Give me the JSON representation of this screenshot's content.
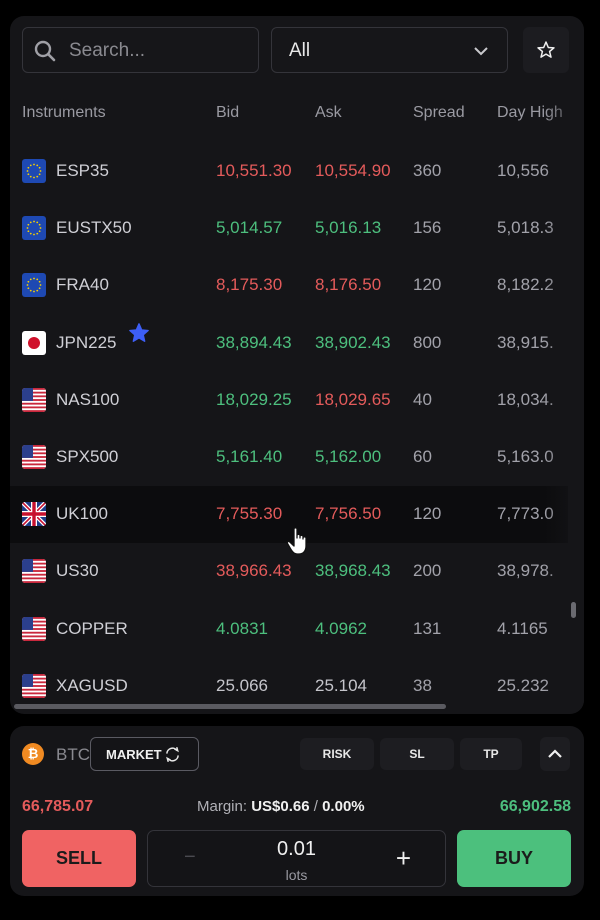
{
  "search": {
    "placeholder": "Search..."
  },
  "filter": {
    "value": "All"
  },
  "columns": [
    "Instruments",
    "Bid",
    "Ask",
    "Spread",
    "Day High"
  ],
  "rows": [
    {
      "symbol": "ESP35",
      "flag": "eu-flag-icon",
      "bid": "10,551.30",
      "ask": "10,554.90",
      "spread": "360",
      "day_high": "10,556",
      "bid_dir": "down",
      "ask_dir": "down"
    },
    {
      "symbol": "EUSTX50",
      "flag": "eu-flag-icon",
      "bid": "5,014.57",
      "ask": "5,016.13",
      "spread": "156",
      "day_high": "5,018.3",
      "bid_dir": "up",
      "ask_dir": "up"
    },
    {
      "symbol": "FRA40",
      "flag": "eu-flag-icon",
      "bid": "8,175.30",
      "ask": "8,176.50",
      "spread": "120",
      "day_high": "8,182.2",
      "bid_dir": "down",
      "ask_dir": "down"
    },
    {
      "symbol": "JPN225",
      "flag": "jp-flag-icon",
      "bid": "38,894.43",
      "ask": "38,902.43",
      "spread": "800",
      "day_high": "38,915.",
      "bid_dir": "up",
      "ask_dir": "up"
    },
    {
      "symbol": "NAS100",
      "flag": "us-flag-icon",
      "bid": "18,029.25",
      "ask": "18,029.65",
      "spread": "40",
      "day_high": "18,034.",
      "bid_dir": "up",
      "ask_dir": "down"
    },
    {
      "symbol": "SPX500",
      "flag": "us-flag-icon",
      "bid": "5,161.40",
      "ask": "5,162.00",
      "spread": "60",
      "day_high": "5,163.0",
      "bid_dir": "up",
      "ask_dir": "up"
    },
    {
      "symbol": "UK100",
      "flag": "uk-flag-icon",
      "bid": "7,755.30",
      "ask": "7,756.50",
      "spread": "120",
      "day_high": "7,773.0",
      "bid_dir": "down",
      "ask_dir": "down"
    },
    {
      "symbol": "US30",
      "flag": "us-flag-icon",
      "bid": "38,966.43",
      "ask": "38,968.43",
      "spread": "200",
      "day_high": "38,978.",
      "bid_dir": "down",
      "ask_dir": "up"
    },
    {
      "symbol": "COPPER",
      "flag": "us-flag-icon",
      "bid": "4.0831",
      "ask": "4.0962",
      "spread": "131",
      "day_high": "4.1165",
      "bid_dir": "up",
      "ask_dir": "up"
    },
    {
      "symbol": "XAGUSD",
      "flag": "us-flag-icon",
      "bid": "25.066",
      "ask": "25.104",
      "spread": "38",
      "day_high": "25.232",
      "bid_dir": "flat",
      "ask_dir": "flat"
    }
  ],
  "trade": {
    "instrument": "BTC",
    "order_type": "MARKET",
    "risk_label": "RISK",
    "sl_label": "SL",
    "tp_label": "TP",
    "sell_price": "66,785.07",
    "margin_label": "Margin:",
    "margin_value": "US$0.66",
    "margin_sep": "/",
    "margin_pct": "0.00%",
    "buy_price": "66,902.58",
    "sell_label": "SELL",
    "buy_label": "BUY",
    "lots_value": "0.01",
    "lots_unit": "lots",
    "minus": "−",
    "plus": "+"
  },
  "colors": {
    "up": "#4dbf7e",
    "down": "#e45b5b",
    "flat": "#c5c5cb",
    "sell": "#f06363",
    "buy": "#4cc07d"
  }
}
